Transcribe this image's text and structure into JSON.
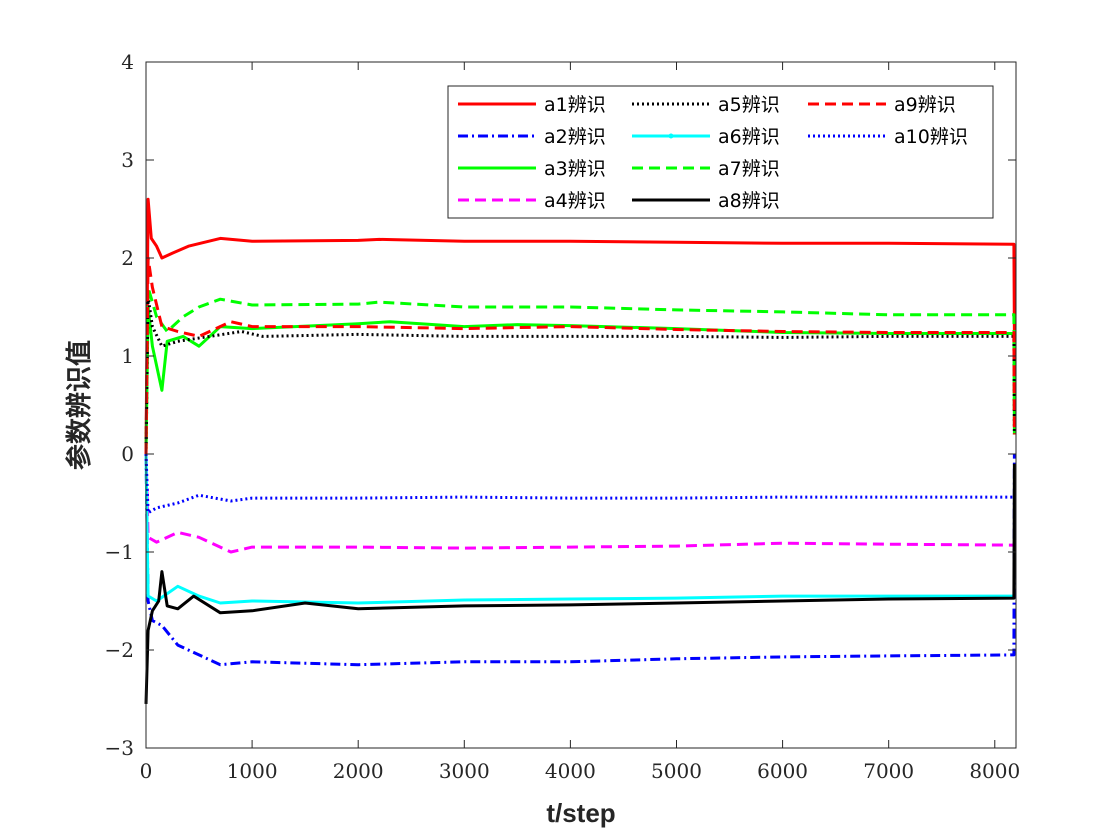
{
  "chart_data": {
    "type": "line",
    "title": "",
    "xlabel": "t/step",
    "ylabel": "参数辨识值",
    "xlim": [
      0,
      8200
    ],
    "ylim": [
      -3,
      4
    ],
    "xticks": [
      0,
      1000,
      2000,
      3000,
      4000,
      5000,
      6000,
      7000,
      8000
    ],
    "xtick_labels": [
      "0",
      "1000",
      "2000",
      "3000",
      "4000",
      "5000",
      "6000",
      "7000",
      "8000"
    ],
    "yticks": [
      -3,
      -2,
      -1,
      0,
      1,
      2,
      3,
      4
    ],
    "ytick_labels": [
      "−3",
      "−2",
      "−1",
      "0",
      "1",
      "2",
      "3",
      "4"
    ],
    "grid": false,
    "legend_position": "top-right",
    "series": [
      {
        "name": "a1辨识",
        "color": "#ff0000",
        "style": "solid",
        "points": [
          [
            0,
            0
          ],
          [
            20,
            2.6
          ],
          [
            50,
            2.2
          ],
          [
            100,
            2.12
          ],
          [
            150,
            2.0
          ],
          [
            250,
            2.05
          ],
          [
            400,
            2.12
          ],
          [
            700,
            2.2
          ],
          [
            1000,
            2.17
          ],
          [
            2000,
            2.18
          ],
          [
            2200,
            2.19
          ],
          [
            3000,
            2.17
          ],
          [
            4000,
            2.17
          ],
          [
            5000,
            2.16
          ],
          [
            6000,
            2.15
          ],
          [
            7000,
            2.15
          ],
          [
            8180,
            2.14
          ],
          [
            8185,
            1.2
          ]
        ]
      },
      {
        "name": "a2辨识",
        "color": "#0000ff",
        "style": "dashdot",
        "points": [
          [
            0,
            0
          ],
          [
            20,
            -1.5
          ],
          [
            60,
            -1.7
          ],
          [
            150,
            -1.75
          ],
          [
            300,
            -1.95
          ],
          [
            500,
            -2.05
          ],
          [
            700,
            -2.15
          ],
          [
            1000,
            -2.12
          ],
          [
            2000,
            -2.15
          ],
          [
            3000,
            -2.12
          ],
          [
            4000,
            -2.12
          ],
          [
            5000,
            -2.09
          ],
          [
            6000,
            -2.07
          ],
          [
            7000,
            -2.06
          ],
          [
            8180,
            -2.05
          ],
          [
            8185,
            0
          ]
        ]
      },
      {
        "name": "a3辨识",
        "color": "#00ff00",
        "style": "solid",
        "points": [
          [
            0,
            0
          ],
          [
            20,
            1.5
          ],
          [
            60,
            1.1
          ],
          [
            150,
            0.65
          ],
          [
            200,
            1.15
          ],
          [
            350,
            1.2
          ],
          [
            500,
            1.1
          ],
          [
            700,
            1.3
          ],
          [
            1000,
            1.28
          ],
          [
            2000,
            1.33
          ],
          [
            2300,
            1.35
          ],
          [
            3000,
            1.3
          ],
          [
            3500,
            1.32
          ],
          [
            4000,
            1.31
          ],
          [
            5000,
            1.28
          ],
          [
            6000,
            1.24
          ],
          [
            7000,
            1.23
          ],
          [
            8180,
            1.23
          ],
          [
            8185,
            0.2
          ]
        ]
      },
      {
        "name": "a4辨识",
        "color": "#ff00ff",
        "style": "dashed",
        "points": [
          [
            0,
            0
          ],
          [
            20,
            -0.85
          ],
          [
            100,
            -0.9
          ],
          [
            300,
            -0.8
          ],
          [
            500,
            -0.85
          ],
          [
            800,
            -1.0
          ],
          [
            1000,
            -0.95
          ],
          [
            2000,
            -0.95
          ],
          [
            3000,
            -0.96
          ],
          [
            4000,
            -0.95
          ],
          [
            5000,
            -0.94
          ],
          [
            6000,
            -0.91
          ],
          [
            7000,
            -0.92
          ],
          [
            8180,
            -0.93
          ]
        ]
      },
      {
        "name": "a5辨识",
        "color": "#000000",
        "style": "dotted",
        "points": [
          [
            0,
            0
          ],
          [
            20,
            1.6
          ],
          [
            60,
            1.3
          ],
          [
            150,
            1.1
          ],
          [
            300,
            1.15
          ],
          [
            600,
            1.2
          ],
          [
            900,
            1.25
          ],
          [
            1100,
            1.2
          ],
          [
            2000,
            1.22
          ],
          [
            3000,
            1.2
          ],
          [
            4000,
            1.2
          ],
          [
            5000,
            1.2
          ],
          [
            6000,
            1.19
          ],
          [
            7000,
            1.2
          ],
          [
            8180,
            1.2
          ],
          [
            8185,
            0.2
          ]
        ]
      },
      {
        "name": "a6辨识",
        "color": "#00ffff",
        "style": "solid",
        "points": [
          [
            0,
            0
          ],
          [
            20,
            -1.45
          ],
          [
            100,
            -1.5
          ],
          [
            300,
            -1.35
          ],
          [
            500,
            -1.45
          ],
          [
            700,
            -1.52
          ],
          [
            1000,
            -1.5
          ],
          [
            2000,
            -1.52
          ],
          [
            3000,
            -1.49
          ],
          [
            4000,
            -1.48
          ],
          [
            5000,
            -1.47
          ],
          [
            6000,
            -1.45
          ],
          [
            7000,
            -1.45
          ],
          [
            8180,
            -1.45
          ]
        ]
      },
      {
        "name": "a7辨识",
        "color": "#00ff00",
        "style": "dashed",
        "points": [
          [
            0,
            0
          ],
          [
            20,
            1.7
          ],
          [
            100,
            1.4
          ],
          [
            200,
            1.25
          ],
          [
            350,
            1.4
          ],
          [
            500,
            1.5
          ],
          [
            700,
            1.58
          ],
          [
            1000,
            1.52
          ],
          [
            2000,
            1.53
          ],
          [
            2200,
            1.55
          ],
          [
            3000,
            1.5
          ],
          [
            4000,
            1.5
          ],
          [
            5000,
            1.47
          ],
          [
            6000,
            1.45
          ],
          [
            7000,
            1.42
          ],
          [
            8180,
            1.42
          ],
          [
            8185,
            0.4
          ]
        ]
      },
      {
        "name": "a8辨识",
        "color": "#000000",
        "style": "solid",
        "points": [
          [
            0,
            -2.55
          ],
          [
            20,
            -1.8
          ],
          [
            60,
            -1.6
          ],
          [
            120,
            -1.5
          ],
          [
            150,
            -1.2
          ],
          [
            200,
            -1.55
          ],
          [
            300,
            -1.58
          ],
          [
            450,
            -1.45
          ],
          [
            700,
            -1.62
          ],
          [
            1000,
            -1.6
          ],
          [
            1500,
            -1.52
          ],
          [
            2000,
            -1.58
          ],
          [
            3000,
            -1.55
          ],
          [
            4000,
            -1.54
          ],
          [
            5000,
            -1.52
          ],
          [
            6000,
            -1.5
          ],
          [
            7000,
            -1.48
          ],
          [
            8180,
            -1.47
          ],
          [
            8185,
            -0.1
          ]
        ]
      },
      {
        "name": "a9辨识",
        "color": "#ff0000",
        "style": "dashed",
        "points": [
          [
            0,
            0
          ],
          [
            20,
            2.0
          ],
          [
            60,
            1.7
          ],
          [
            150,
            1.3
          ],
          [
            300,
            1.25
          ],
          [
            500,
            1.2
          ],
          [
            800,
            1.35
          ],
          [
            1000,
            1.3
          ],
          [
            2000,
            1.3
          ],
          [
            3000,
            1.28
          ],
          [
            4000,
            1.3
          ],
          [
            5000,
            1.27
          ],
          [
            6000,
            1.25
          ],
          [
            7000,
            1.24
          ],
          [
            8180,
            1.24
          ],
          [
            8185,
            0.2
          ]
        ]
      },
      {
        "name": "a10辨识",
        "color": "#0000ff",
        "style": "dotted",
        "points": [
          [
            0,
            0
          ],
          [
            20,
            -0.6
          ],
          [
            100,
            -0.55
          ],
          [
            300,
            -0.5
          ],
          [
            500,
            -0.42
          ],
          [
            800,
            -0.48
          ],
          [
            1000,
            -0.45
          ],
          [
            2000,
            -0.45
          ],
          [
            3000,
            -0.44
          ],
          [
            4000,
            -0.45
          ],
          [
            5000,
            -0.45
          ],
          [
            6000,
            -0.44
          ],
          [
            7000,
            -0.44
          ],
          [
            8180,
            -0.44
          ]
        ]
      }
    ]
  }
}
